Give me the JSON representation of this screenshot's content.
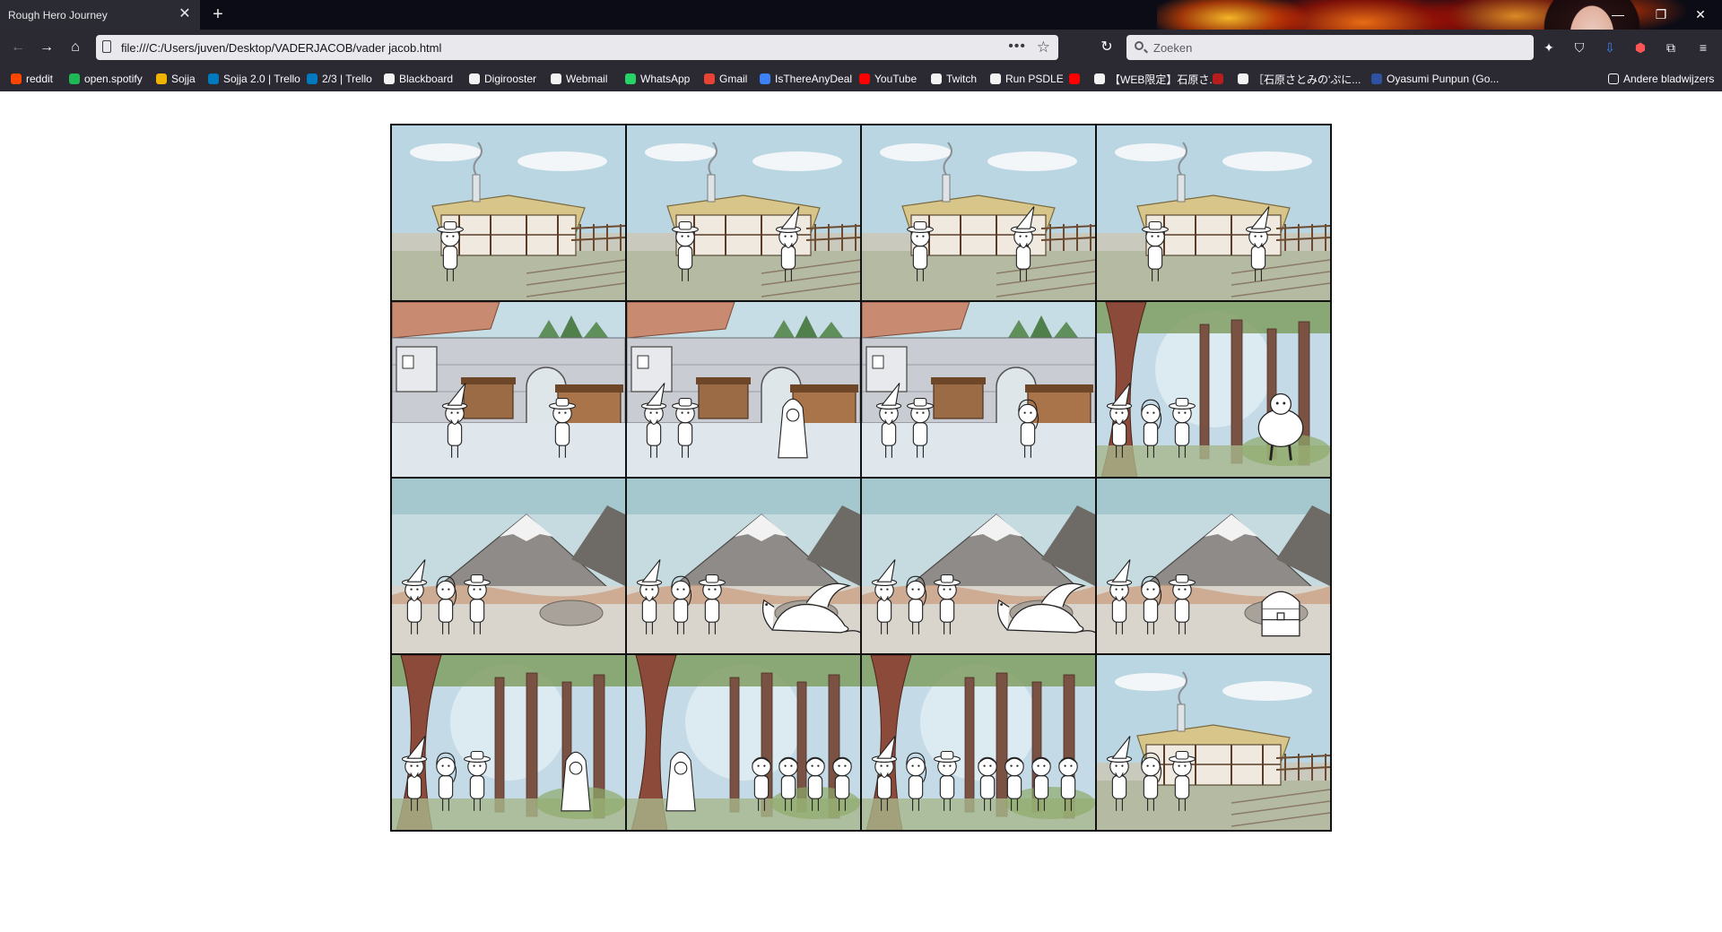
{
  "browser": {
    "tab": {
      "title": "Rough Hero Journey"
    },
    "url": "file:///C:/Users/juven/Desktop/VADERJACOB/vader jacob.html",
    "search_placeholder": "Zoeken",
    "bookmarks": [
      {
        "label": "reddit",
        "color": "#ff4500"
      },
      {
        "label": "open.spotify",
        "color": "#1db954"
      },
      {
        "label": "Sojja",
        "color": "#f0b400"
      },
      {
        "label": "Sojja 2.0 | Trello",
        "color": "#0079bf"
      },
      {
        "label": "2/3 | Trello",
        "color": "#0079bf"
      },
      {
        "label": "Blackboard",
        "color": "#f2f2f2"
      },
      {
        "label": "Digirooster",
        "color": "#f2f2f2"
      },
      {
        "label": "Webmail",
        "color": "#f2f2f2"
      },
      {
        "label": "WhatsApp",
        "color": "#25d366"
      },
      {
        "label": "Gmail",
        "color": "#ea4335"
      },
      {
        "label": "IsThereAnyDeal",
        "color": "#3b82f6"
      },
      {
        "label": "YouTube",
        "color": "#ff0000"
      },
      {
        "label": "Twitch",
        "color": "#f2f2f2"
      },
      {
        "label": "Run PSDLE",
        "color": "#f2f2f2"
      },
      {
        "label": "",
        "color": "#ff0000"
      },
      {
        "label": "【WEB限定】石原さ...",
        "color": "#f2f2f2"
      },
      {
        "label": "",
        "color": "#b91c1c"
      },
      {
        "label": "［石原さとみの'ぷに...",
        "color": "#f2f2f2"
      },
      {
        "label": "Oyasumi Punpun (Go...",
        "color": "#2e51a2"
      }
    ],
    "other_bookmarks": "Andere bladwijzers"
  },
  "comic": {
    "panels": [
      {
        "scene": "farm",
        "characters": [
          "farmer"
        ]
      },
      {
        "scene": "farm",
        "characters": [
          "farmer",
          "wizard"
        ]
      },
      {
        "scene": "farm",
        "characters": [
          "farmer",
          "wizard"
        ]
      },
      {
        "scene": "farm",
        "characters": [
          "farmer",
          "wizard"
        ]
      },
      {
        "scene": "town",
        "characters": [
          "wizard",
          "farmer"
        ]
      },
      {
        "scene": "town",
        "characters": [
          "wizard",
          "farmer",
          "hood"
        ]
      },
      {
        "scene": "town",
        "characters": [
          "wizard",
          "farmer",
          "girl"
        ]
      },
      {
        "scene": "forest",
        "characters": [
          "wizard",
          "girl",
          "farmer",
          "troll"
        ]
      },
      {
        "scene": "mountain",
        "characters": [
          "wizard",
          "girl",
          "farmer"
        ]
      },
      {
        "scene": "mountain",
        "characters": [
          "wizard",
          "girl",
          "farmer",
          "dragon"
        ]
      },
      {
        "scene": "mountain",
        "characters": [
          "wizard",
          "girl",
          "farmer",
          "dragon"
        ]
      },
      {
        "scene": "mountain",
        "characters": [
          "wizard",
          "girl",
          "farmer",
          "chest"
        ]
      },
      {
        "scene": "forest",
        "characters": [
          "wizard",
          "girl",
          "farmer",
          "hood"
        ]
      },
      {
        "scene": "forest",
        "characters": [
          "hood",
          "villager",
          "villager",
          "villager",
          "villager"
        ]
      },
      {
        "scene": "forest",
        "characters": [
          "wizard",
          "girl",
          "farmer",
          "villager",
          "villager",
          "villager",
          "villager"
        ]
      },
      {
        "scene": "farm",
        "characters": [
          "wizard",
          "girl",
          "farmer"
        ]
      }
    ]
  }
}
